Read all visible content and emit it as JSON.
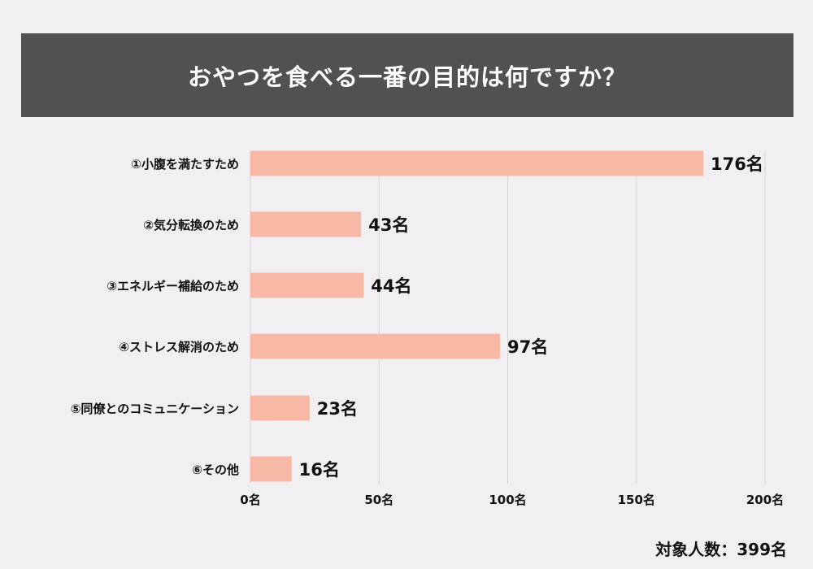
{
  "title": "おやつを食べる一番の目的は何ですか？",
  "footer": "対象人数：399名",
  "colors": {
    "background": "#f1eff1",
    "title_bg": "#525052",
    "bar": "#f7b9a6",
    "grid": "#d6d3d8"
  },
  "chart_data": {
    "type": "bar",
    "orientation": "horizontal",
    "categories": [
      "①小腹を満たすため",
      "②気分転換のため",
      "③エネルギー補給のため",
      "④ストレス解消のため",
      "⑤同僚とのコミュニケーション",
      "⑥その他"
    ],
    "values": [
      176,
      43,
      44,
      97,
      23,
      16
    ],
    "value_labels": [
      "176名",
      "43名",
      "44名",
      "97名",
      "23名",
      "16名"
    ],
    "x_ticks": [
      0,
      50,
      100,
      150,
      200
    ],
    "x_tick_labels": [
      "0名",
      "50名",
      "100名",
      "150名",
      "200名"
    ],
    "xlim": [
      0,
      200
    ],
    "grid": true
  }
}
